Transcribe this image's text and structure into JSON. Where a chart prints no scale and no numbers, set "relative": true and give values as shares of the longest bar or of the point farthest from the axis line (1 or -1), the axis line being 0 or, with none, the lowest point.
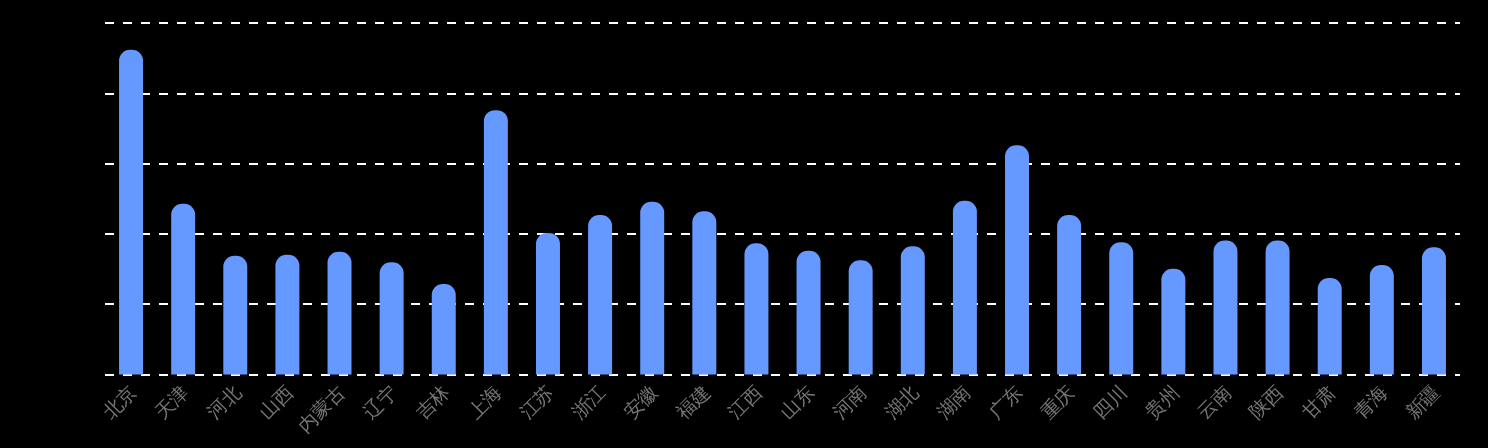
{
  "chart_data": {
    "type": "bar",
    "relative": true,
    "grid": "y",
    "categories": [
      "北京",
      "天津",
      "河北",
      "山西",
      "内蒙古",
      "辽宁",
      "吉林",
      "上海",
      "江苏",
      "浙江",
      "安徽",
      "福建",
      "江西",
      "山东",
      "河南",
      "湖北",
      "湖南",
      "广东",
      "重庆",
      "四川",
      "贵州",
      "云南",
      "陕西",
      "甘肃",
      "青海",
      "新疆"
    ],
    "values": [
      1,
      0.526,
      0.366,
      0.369,
      0.378,
      0.346,
      0.279,
      0.814,
      0.436,
      0.491,
      0.532,
      0.503,
      0.404,
      0.381,
      0.352,
      0.395,
      0.535,
      0.706,
      0.491,
      0.407,
      0.326,
      0.413,
      0.413,
      0.297,
      0.337,
      0.392
    ],
    "color": "#6699ff"
  }
}
